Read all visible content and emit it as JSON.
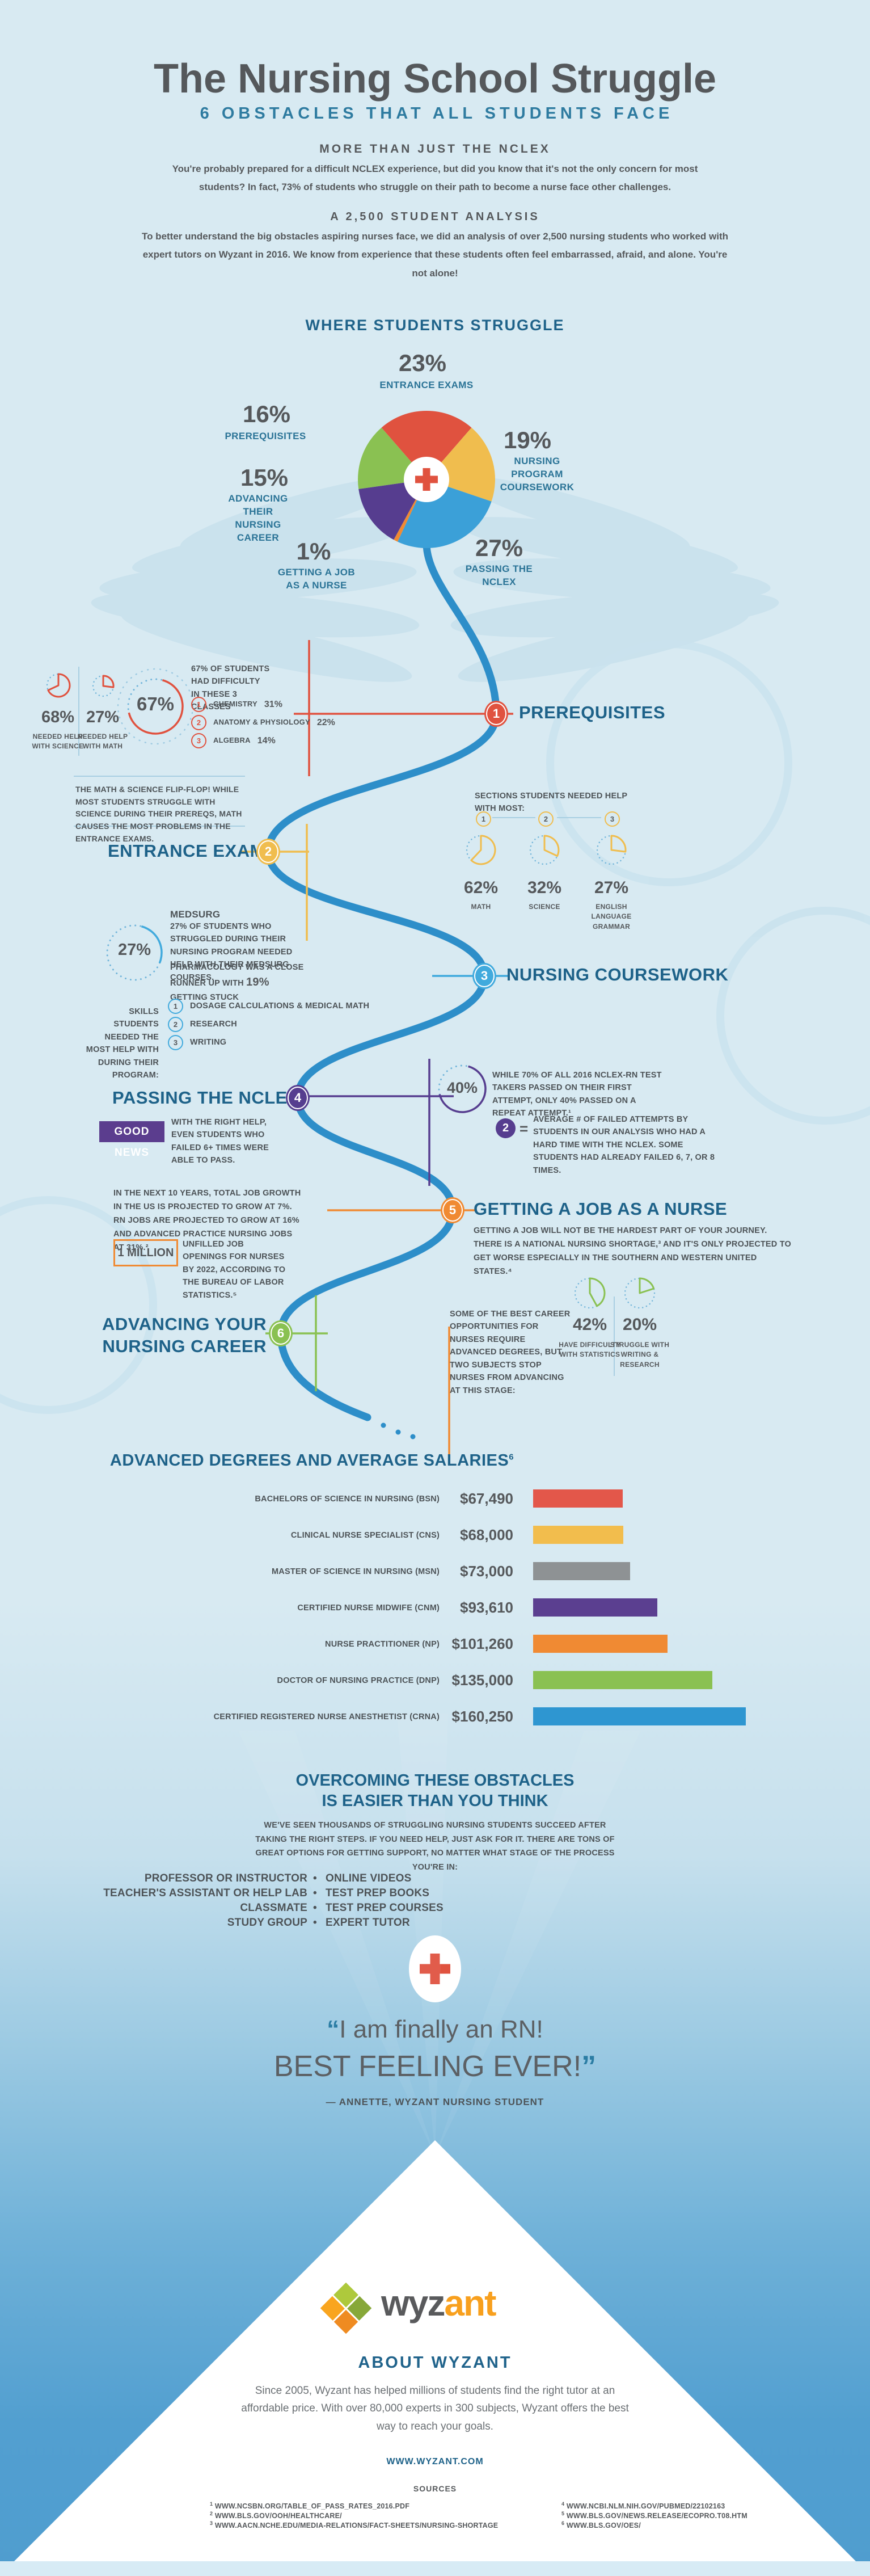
{
  "colors": {
    "red": "#e0523f",
    "yellow": "#f0bd4e",
    "blue": "#3ba0d8",
    "lightblue": "#41aadd",
    "orange": "#f08a33",
    "purple": "#563d8f",
    "green": "#8ac152",
    "teal": "#1e6289",
    "gray": "#55585b"
  },
  "header": {
    "title": "The Nursing School Struggle",
    "subtitle": "6 OBSTACLES THAT ALL STUDENTS FACE",
    "block1_title": "MORE THAN JUST THE NCLEX",
    "block1_text": "You're probably prepared for a difficult NCLEX experience, but did you know that it's not the only concern for most students? In fact, 73% of students who struggle on their path to become a nurse face other challenges.",
    "block2_title": "A 2,500 STUDENT ANALYSIS",
    "block2_text": "To better understand the big obstacles aspiring nurses face, we did an analysis of over 2,500 nursing students who worked with expert tutors on Wyzant in 2016. We know from experience that these students often feel embarrassed, afraid, and alone. You're not alone!"
  },
  "chart_data": [
    {
      "type": "pie",
      "title": "WHERE STUDENTS STRUGGLE",
      "labels": [
        "ENTRANCE EXAMS",
        "NURSING PROGRAM COURSEWORK",
        "PASSING THE NCLEX",
        "GETTING A JOB AS A NURSE",
        "ADVANCING THEIR NURSING CAREER",
        "PREREQUISITES"
      ],
      "values": [
        23,
        19,
        27,
        1,
        15,
        16
      ],
      "percent_labels": [
        "23%",
        "19%",
        "27%",
        "1%",
        "15%",
        "16%"
      ],
      "colors": [
        "#e0523f",
        "#f0bd4e",
        "#3ba0d8",
        "#f08a33",
        "#563d8f",
        "#8ac152"
      ],
      "legend_position": "around",
      "center_icon": "medical-cross"
    },
    {
      "type": "bar",
      "title": "ADVANCED DEGREES AND AVERAGE SALARIES",
      "title_footnote": "6",
      "categories": [
        "BACHELORS OF SCIENCE IN NURSING (BSN)",
        "CLINICAL NURSE SPECIALIST (CNS)",
        "MASTER OF SCIENCE IN NURSING (MSN)",
        "CERTIFIED NURSE MIDWIFE (CNM)",
        "NURSE PRACTITIONER (NP)",
        "DOCTOR OF NURSING PRACTICE (DNP)",
        "CERTIFIED REGISTERED NURSE ANESTHETIST (CRNA)"
      ],
      "values": [
        67490,
        68000,
        73000,
        93610,
        101260,
        135000,
        160250
      ],
      "value_labels": [
        "$67,490",
        "$68,000",
        "$73,000",
        "$93,610",
        "$101,260",
        "$135,000",
        "$160,250"
      ],
      "colors": [
        "#e3574a",
        "#f2bd4d",
        "#8e9294",
        "#5b3f90",
        "#f08a33",
        "#8ac152",
        "#2e96d1"
      ],
      "xlim": [
        0,
        160250
      ]
    }
  ],
  "sections": [
    {
      "number": "1",
      "title": "PREREQUISITES",
      "stat1_value": "68%",
      "stat1_pct": 68,
      "stat1_label": "NEEDED HELP WITH SCIENCE",
      "stat2_value": "27%",
      "stat2_pct": 27,
      "stat2_label": "NEEDED HELP WITH MATH",
      "big_value": "67%",
      "big_pct": 67,
      "big_text": "67% OF STUDENTS HAD DIFFICULTY IN THESE 3 CLASSES",
      "classes": [
        {
          "n": "1",
          "label": "CHEMISTRY",
          "value": "31%"
        },
        {
          "n": "2",
          "label": "ANATOMY & PHYSIOLOGY",
          "value": "22%"
        },
        {
          "n": "3",
          "label": "ALGEBRA",
          "value": "14%"
        }
      ],
      "callout": "THE MATH & SCIENCE FLIP-FLOP! WHILE MOST STUDENTS STRUGGLE WITH SCIENCE DURING THEIR PREREQS, MATH CAUSES THE MOST PROBLEMS IN THE ENTRANCE EXAMS."
    },
    {
      "number": "2",
      "title": "ENTRANCE EXAMS",
      "intro": "SECTIONS STUDENTS NEEDED HELP WITH MOST:",
      "stats": [
        {
          "n": "1",
          "value": "62%",
          "pct": 62,
          "label": "MATH"
        },
        {
          "n": "2",
          "value": "32%",
          "pct": 32,
          "label": "SCIENCE"
        },
        {
          "n": "3",
          "value": "27%",
          "pct": 27,
          "label": "ENGLISH LANGUAGE GRAMMAR"
        }
      ]
    },
    {
      "number": "3",
      "title": "NURSING COURSEWORK",
      "stat_value": "27%",
      "stat_pct": 27,
      "medsurg_title": "MEDSURG",
      "medsurg_text": "27% OF STUDENTS WHO STRUGGLED DURING THEIR NURSING PROGRAM NEEDED HELP WITH THEIR MEDSURG COURSES.",
      "pharma_text": "PHARMACOLOGY WAS A CLOSE RUNNER UP WITH",
      "pharma_value": "19%",
      "pharma_text2": "GETTING STUCK",
      "skills_intro": "SKILLS STUDENTS NEEDED THE MOST HELP WITH DURING THEIR PROGRAM:",
      "skills": [
        {
          "n": "1",
          "label": "DOSAGE CALCULATIONS & MEDICAL MATH"
        },
        {
          "n": "2",
          "label": "RESEARCH"
        },
        {
          "n": "3",
          "label": "WRITING"
        }
      ]
    },
    {
      "number": "4",
      "title": "PASSING THE NCLEX",
      "stat_value": "40%",
      "stat_text": "WHILE 70% OF ALL 2016 NCLEX-RN TEST TAKERS PASSED ON THEIR FIRST ATTEMPT, ONLY 40% PASSED ON A REPEAT ATTEMPT.¹",
      "avg_value": "2",
      "equals": "=",
      "avg_text": "AVERAGE # OF FAILED ATTEMPTS BY STUDENTS IN OUR ANALYSIS WHO HAD A HARD TIME WITH THE NCLEX. SOME STUDENTS HAD ALREADY FAILED 6, 7, OR 8 TIMES.",
      "badge": "GOOD NEWS",
      "badge_text": "WITH THE RIGHT HELP, EVEN STUDENTS WHO FAILED 6+ TIMES WERE ABLE TO PASS."
    },
    {
      "number": "5",
      "title": "GETTING A JOB AS A NURSE",
      "intro": "GETTING A JOB WILL NOT BE THE HARDEST PART OF YOUR JOURNEY. THERE IS A NATIONAL NURSING SHORTAGE,³ AND IT'S ONLY PROJECTED TO GET WORSE ESPECIALLY IN THE SOUTHERN AND WESTERN UNITED STATES.⁴",
      "growth_text": "IN THE NEXT 10 YEARS, TOTAL JOB GROWTH IN THE US IS PROJECTED TO GROW AT 7%. RN JOBS ARE PROJECTED TO GROW AT 16% AND ADVANCED PRACTICE NURSING JOBS AT 31%.²",
      "million_value": "1 MILLION",
      "million_text": "UNFILLED JOB OPENINGS FOR NURSES BY 2022, ACCORDING TO THE BUREAU OF LABOR STATISTICS.⁵"
    },
    {
      "number": "6",
      "title_line1": "ADVANCING YOUR",
      "title_line2": "NURSING CAREER",
      "intro": "SOME OF THE BEST CAREER OPPORTUNITIES FOR NURSES REQUIRE ADVANCED DEGREES, BUT TWO SUBJECTS STOP NURSES FROM ADVANCING AT THIS STAGE:",
      "stat1_value": "42%",
      "stat1_pct": 42,
      "stat1_label": "HAVE DIFFICULTY WITH STATISTICS",
      "stat2_value": "20%",
      "stat2_pct": 20,
      "stat2_label": "STRUGGLE WITH WRITING & RESEARCH"
    }
  ],
  "where_title": "WHERE STUDENTS STRUGGLE",
  "overcoming": {
    "title_line1": "OVERCOMING THESE OBSTACLES",
    "title_line2": "IS EASIER THAN YOU THINK",
    "text": "WE'VE SEEN THOUSANDS OF STRUGGLING NURSING STUDENTS SUCCEED AFTER TAKING THE RIGHT STEPS. IF YOU NEED HELP, JUST ASK FOR IT. THERE ARE TONS OF GREAT OPTIONS FOR GETTING SUPPORT, NO MATTER WHAT STAGE OF THE PROCESS YOU'RE IN:",
    "bullet": "•",
    "options_left": [
      "PROFESSOR OR INSTRUCTOR",
      "TEACHER'S ASSISTANT OR HELP LAB",
      "CLASSMATE",
      "STUDY GROUP"
    ],
    "options_right": [
      "ONLINE VIDEOS",
      "TEST PREP BOOKS",
      "TEST PREP COURSES",
      "EXPERT TUTOR"
    ]
  },
  "quote": {
    "open": "“",
    "close": "”",
    "line1": "I am finally an RN!",
    "line2": "BEST FEELING EVER!",
    "attribution": "— ANNETTE, WYZANT NURSING STUDENT"
  },
  "footer": {
    "brand_gray": "wyz",
    "brand_orange": "ant",
    "about_title": "ABOUT WYZANT",
    "about_text": "Since 2005, Wyzant has helped millions of students find the right tutor at an affordable price. With over 80,000 experts in 300 subjects, Wyzant offers the best way to reach your goals.",
    "website": "WWW.WYZANT.COM",
    "sources_title": "SOURCES",
    "sources": [
      {
        "n": "1",
        "url": "WWW.NCSBN.ORG/TABLE_OF_PASS_RATES_2016.PDF"
      },
      {
        "n": "2",
        "url": "WWW.BLS.GOV/OOH/HEALTHCARE/"
      },
      {
        "n": "3",
        "url": "WWW.AACN.NCHE.EDU/MEDIA-RELATIONS/FACT-SHEETS/NURSING-SHORTAGE"
      },
      {
        "n": "4",
        "url": "WWW.NCBI.NLM.NIH.GOV/PUBMED/22102163"
      },
      {
        "n": "5",
        "url": "WWW.BLS.GOV/NEWS.RELEASE/ECOPRO.T08.HTM"
      },
      {
        "n": "6",
        "url": "WWW.BLS.GOV/OES/"
      }
    ]
  }
}
